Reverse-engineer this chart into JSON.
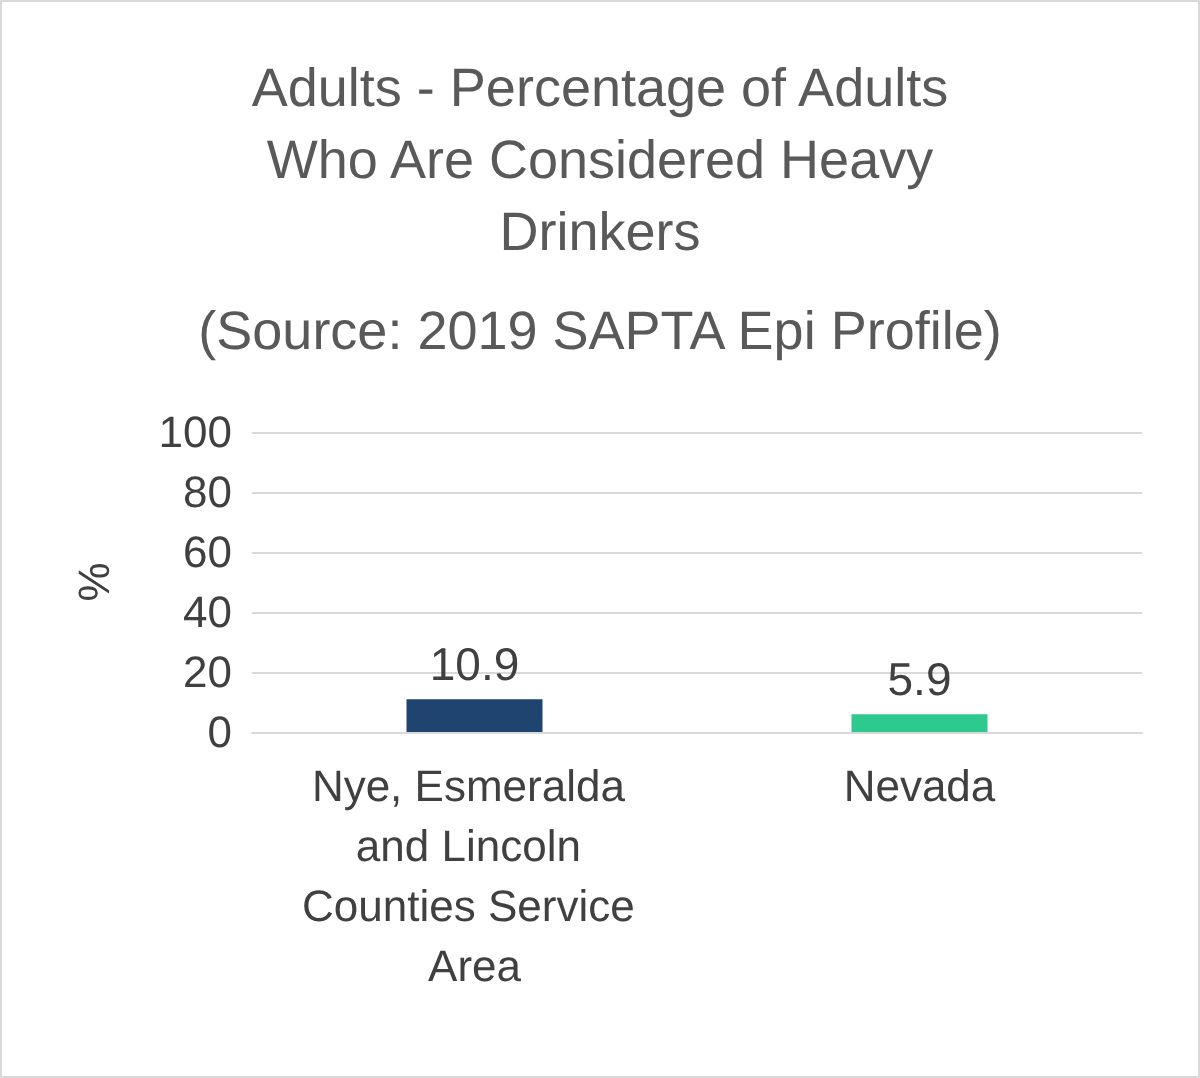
{
  "chart_data": {
    "type": "bar",
    "title": "Adults - Percentage of Adults Who Are Considered Heavy Drinkers",
    "subtitle": "(Source: 2019 SAPTA Epi Profile)",
    "ylabel": "%",
    "categories": [
      "Nye, Esmeralda and Lincoln Counties Service Area",
      "Nevada"
    ],
    "values": [
      10.9,
      5.9
    ],
    "colors": [
      "#1f4470",
      "#2ec98f"
    ],
    "ylim": [
      0,
      100
    ],
    "yticks": [
      0,
      20,
      40,
      60,
      80,
      100
    ],
    "grid": "y",
    "data_labels": true
  }
}
